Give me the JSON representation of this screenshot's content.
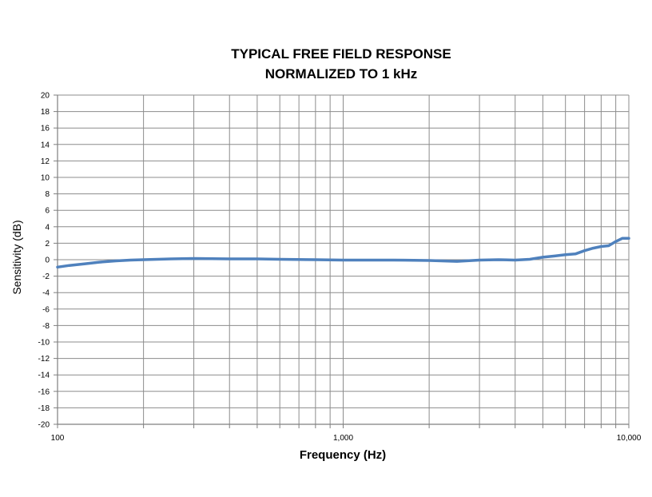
{
  "chart_data": {
    "type": "line",
    "title": [
      "TYPICAL FREE FIELD RESPONSE",
      "NORMALIZED TO 1 kHz"
    ],
    "xlabel": "Frequency (Hz)",
    "ylabel": "Sensitivity (dB)",
    "x_scale": "log",
    "xlim": [
      100,
      10000
    ],
    "ylim": [
      -20,
      20
    ],
    "y_ticks": [
      20,
      18,
      16,
      14,
      12,
      10,
      8,
      6,
      4,
      2,
      0,
      -2,
      -4,
      -6,
      -8,
      -10,
      -12,
      -14,
      -16,
      -18,
      -20
    ],
    "x_tick_labels": [
      {
        "value": 100,
        "label": "100"
      },
      {
        "value": 1000,
        "label": "1,000"
      },
      {
        "value": 10000,
        "label": "10,000"
      }
    ],
    "grid": true,
    "legend": "none",
    "series": [
      {
        "color": "#4f81bd",
        "points": [
          [
            100,
            -0.9
          ],
          [
            110,
            -0.7
          ],
          [
            125,
            -0.5
          ],
          [
            140,
            -0.3
          ],
          [
            160,
            -0.15
          ],
          [
            180,
            -0.05
          ],
          [
            200,
            0.0
          ],
          [
            250,
            0.1
          ],
          [
            300,
            0.15
          ],
          [
            400,
            0.1
          ],
          [
            500,
            0.1
          ],
          [
            600,
            0.05
          ],
          [
            800,
            0.0
          ],
          [
            1000,
            -0.05
          ],
          [
            1200,
            -0.05
          ],
          [
            1500,
            -0.05
          ],
          [
            2000,
            -0.1
          ],
          [
            2500,
            -0.2
          ],
          [
            3000,
            -0.05
          ],
          [
            3500,
            0.0
          ],
          [
            4000,
            -0.05
          ],
          [
            4500,
            0.05
          ],
          [
            5000,
            0.3
          ],
          [
            5500,
            0.45
          ],
          [
            6000,
            0.6
          ],
          [
            6500,
            0.7
          ],
          [
            7000,
            1.1
          ],
          [
            7500,
            1.4
          ],
          [
            8000,
            1.6
          ],
          [
            8500,
            1.7
          ],
          [
            9000,
            2.2
          ],
          [
            9500,
            2.6
          ],
          [
            10000,
            2.6
          ]
        ]
      }
    ]
  }
}
